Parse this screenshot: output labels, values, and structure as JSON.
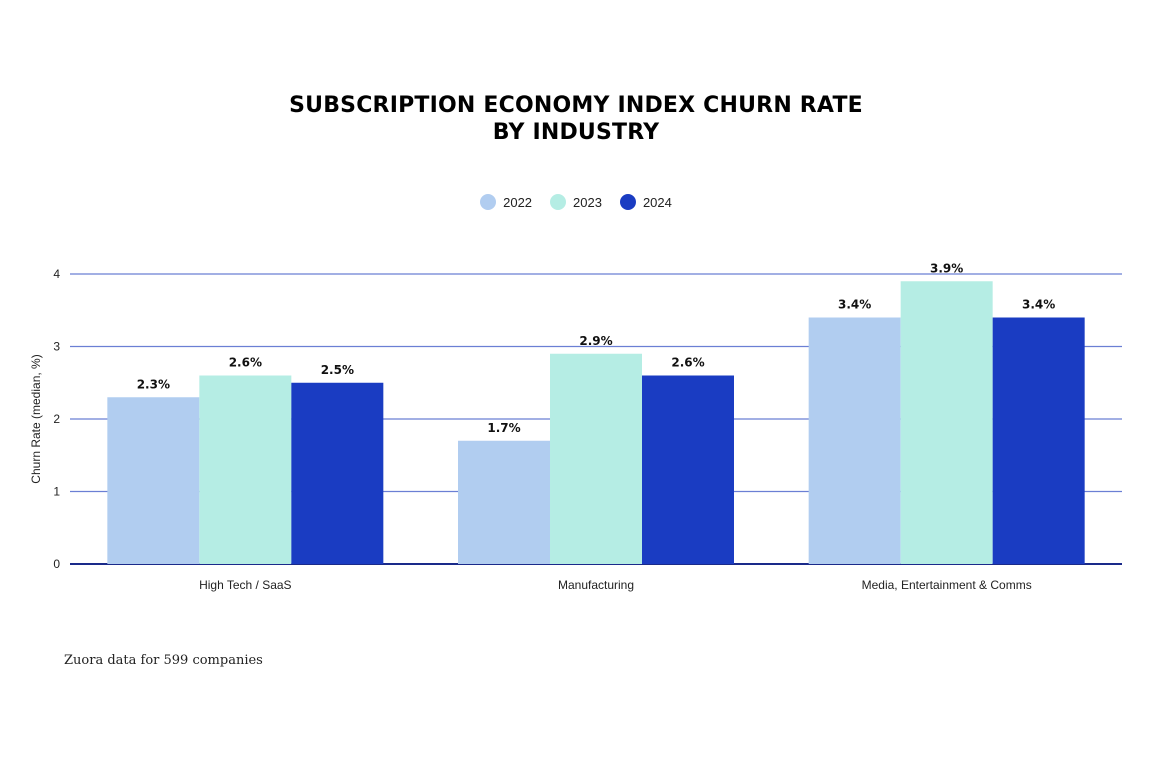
{
  "title_lines": [
    "SUBSCRIPTION ECONOMY INDEX CHURN RATE",
    "BY INDUSTRY"
  ],
  "footnote": "Zuora data for 599 companies",
  "colors": {
    "2022": "#b1cdf0",
    "2023": "#b5ede4",
    "2024": "#1a3cc2",
    "gridline": "#6b7fd4",
    "baseline": "#1a2a8a"
  },
  "chart_data": {
    "type": "bar",
    "title": "SUBSCRIPTION ECONOMY INDEX CHURN RATE BY INDUSTRY",
    "categories": [
      "High Tech / SaaS",
      "Manufacturing",
      "Media, Entertainment & Comms"
    ],
    "series": [
      {
        "name": "2022",
        "values": [
          2.3,
          1.7,
          3.4
        ],
        "labels": [
          "2.3%",
          "1.7%",
          "3.4%"
        ]
      },
      {
        "name": "2023",
        "values": [
          2.6,
          2.9,
          3.9
        ],
        "labels": [
          "2.6%",
          "2.9%",
          "3.9%"
        ]
      },
      {
        "name": "2024",
        "values": [
          2.5,
          2.6,
          3.4
        ],
        "labels": [
          "2.5%",
          "2.6%",
          "3.4%"
        ]
      }
    ],
    "xlabel": "",
    "ylabel": "Churn Rate (median, %)",
    "ylim": [
      0,
      4
    ],
    "yticks": [
      0,
      1,
      2,
      3,
      4
    ],
    "legend": "top-center",
    "grid": true
  }
}
